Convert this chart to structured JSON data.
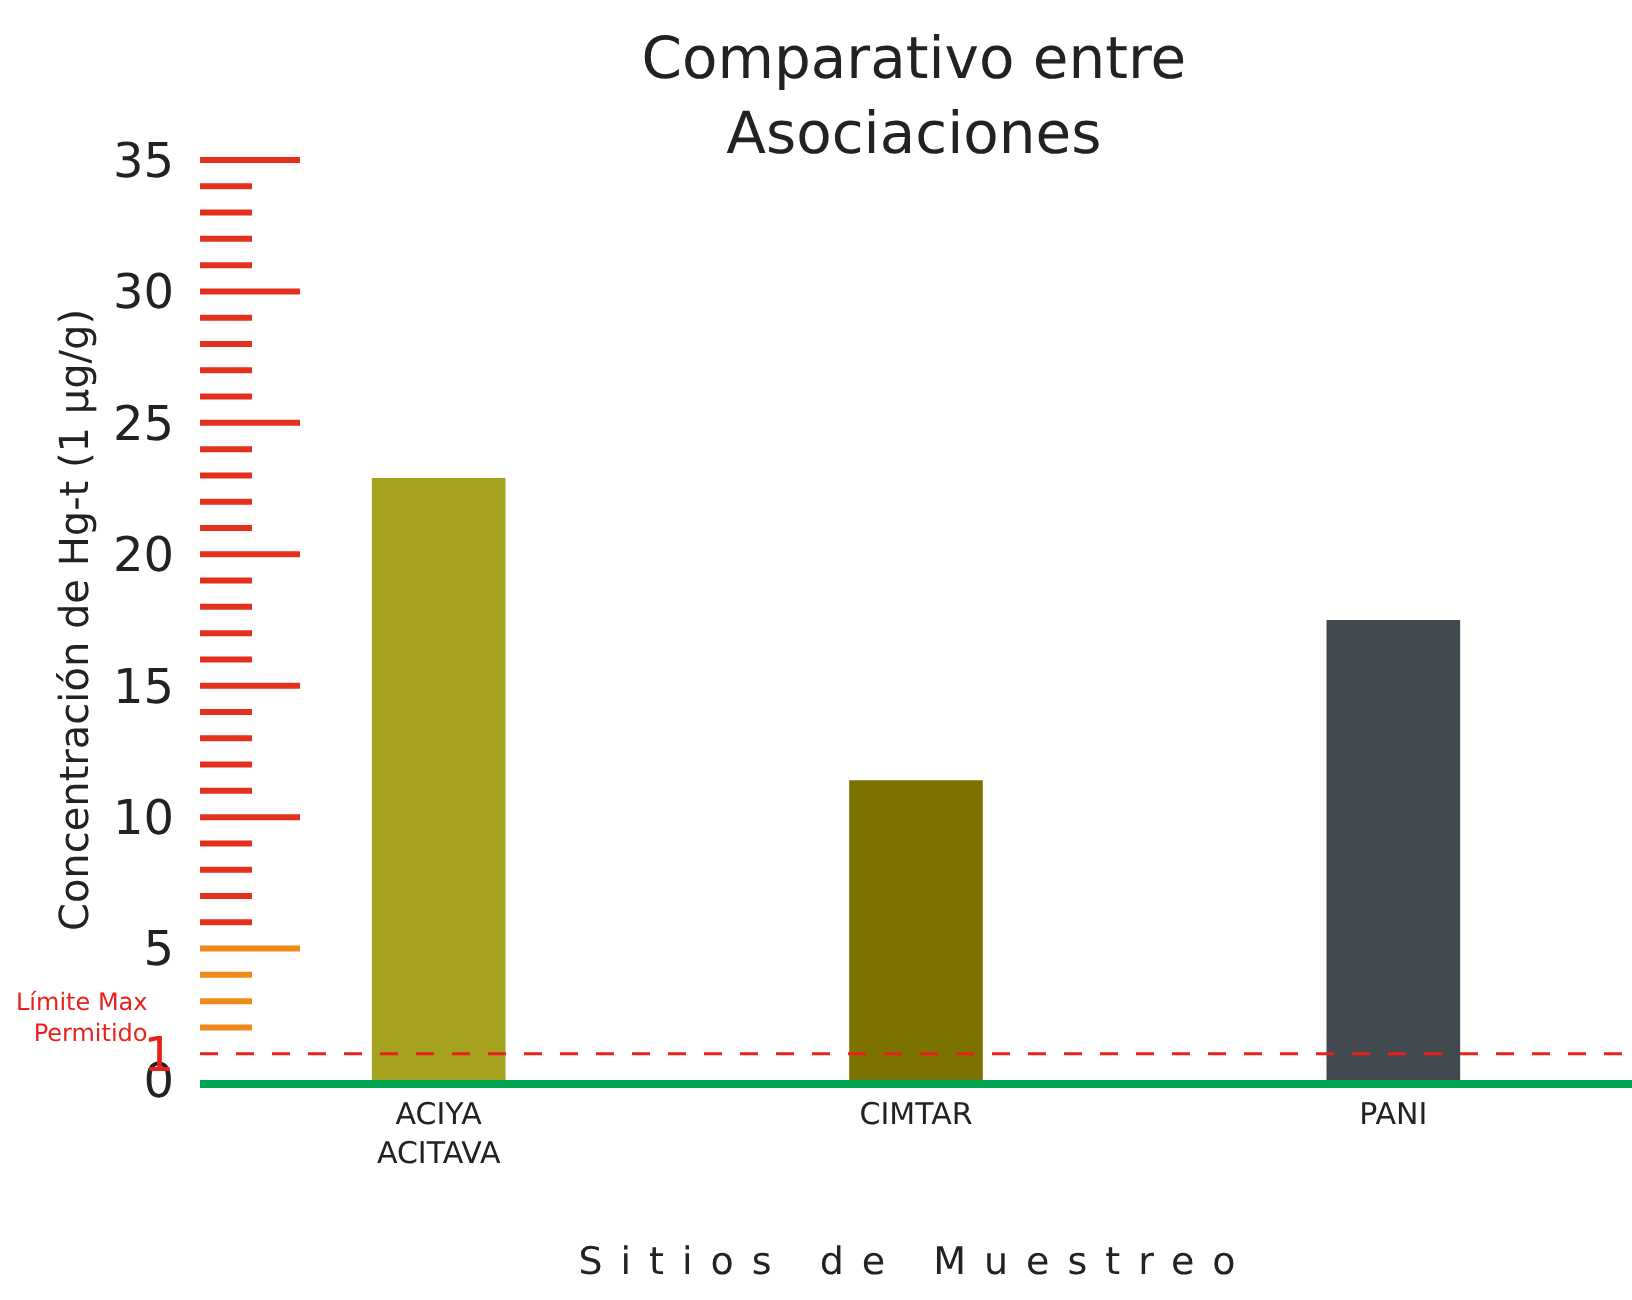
{
  "chart_data": {
    "type": "bar",
    "title": "Comparativo entre Asociaciones",
    "xlabel": "Sitios de Muestreo",
    "ylabel": "Concentración de Hg-t (1 µg/g)",
    "categories": [
      "ACIYA ACITAVA",
      "CIMTAR",
      "PANI"
    ],
    "values": [
      22.9,
      11.4,
      17.5
    ],
    "colors": [
      "#a5a21f",
      "#7b7200",
      "#434a4f"
    ],
    "ylim": [
      0,
      35
    ],
    "yticks": [
      0,
      1,
      5,
      10,
      15,
      20,
      25,
      30,
      35
    ],
    "ref_lines": [
      {
        "axis": "y",
        "value": 1,
        "label": "Límite Max Permitido",
        "color": "#e8211d",
        "line_style": "dashed"
      }
    ],
    "grid": false
  }
}
